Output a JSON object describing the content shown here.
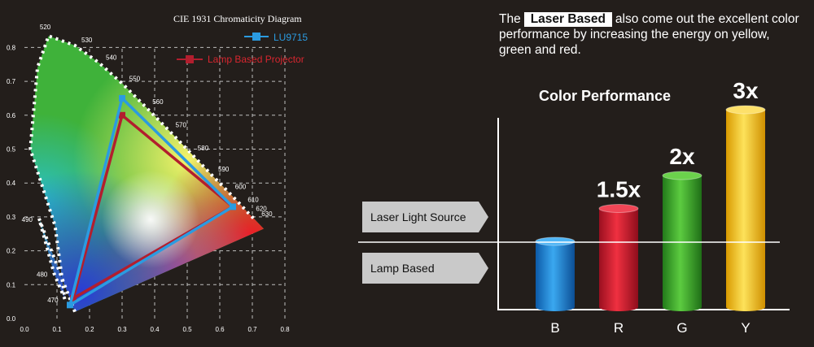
{
  "intro": {
    "before": "The",
    "highlight": "Laser Based",
    "after": "also come out the excellent color performance by increasing the energy on yellow, green and red."
  },
  "chart_data": [
    {
      "type": "scatter",
      "title": "CIE 1931 Chromaticity Diagram",
      "xlabel": "",
      "ylabel": "",
      "xlim": [
        0,
        0.8
      ],
      "ylim": [
        0,
        0.8
      ],
      "x_ticks": [
        "0.0",
        "0.1",
        "0.2",
        "0.3",
        "0.4",
        "0.5",
        "0.6",
        "0.7",
        "0.8"
      ],
      "y_ticks": [
        "0.0",
        "0.1",
        "0.2",
        "0.3",
        "0.4",
        "0.5",
        "0.6",
        "0.7",
        "0.8"
      ],
      "grid": true,
      "legend_position": "top-right",
      "locus_labels": [
        {
          "label": "470",
          "x": 0.124,
          "y": 0.058
        },
        {
          "label": "480",
          "x": 0.091,
          "y": 0.133
        },
        {
          "label": "490",
          "x": 0.045,
          "y": 0.295
        },
        {
          "label": "520",
          "x": 0.074,
          "y": 0.834
        },
        {
          "label": "530",
          "x": 0.155,
          "y": 0.806
        },
        {
          "label": "540",
          "x": 0.23,
          "y": 0.754
        },
        {
          "label": "550",
          "x": 0.302,
          "y": 0.692
        },
        {
          "label": "560",
          "x": 0.373,
          "y": 0.624
        },
        {
          "label": "570",
          "x": 0.444,
          "y": 0.555
        },
        {
          "label": "580",
          "x": 0.512,
          "y": 0.487
        },
        {
          "label": "590",
          "x": 0.575,
          "y": 0.424
        },
        {
          "label": "600",
          "x": 0.627,
          "y": 0.373
        },
        {
          "label": "610",
          "x": 0.666,
          "y": 0.334
        },
        {
          "label": "620",
          "x": 0.691,
          "y": 0.308
        },
        {
          "label": "630",
          "x": 0.708,
          "y": 0.292
        }
      ],
      "series": [
        {
          "name": "LU9715",
          "color": "#2b9be0",
          "points": [
            [
              0.3,
              0.65
            ],
            [
              0.64,
              0.33
            ],
            [
              0.14,
              0.04
            ]
          ]
        },
        {
          "name": "Lamp Based Projector",
          "color": "#b21e2e",
          "points": [
            [
              0.3,
              0.6
            ],
            [
              0.64,
              0.33
            ],
            [
              0.15,
              0.06
            ]
          ]
        }
      ]
    },
    {
      "type": "bar",
      "title": "Color Performance",
      "categories": [
        "B",
        "R",
        "G",
        "Y"
      ],
      "values": [
        1,
        1.5,
        2,
        3
      ],
      "value_labels": [
        "",
        "1.5x",
        "2x",
        "3x"
      ],
      "colors": [
        "#1a8fe0",
        "#e0202e",
        "#3fb52c",
        "#f6c500"
      ],
      "ylim": [
        0,
        3.3
      ],
      "reference_labels": [
        "Laser Light Source",
        "Lamp Based"
      ]
    }
  ]
}
